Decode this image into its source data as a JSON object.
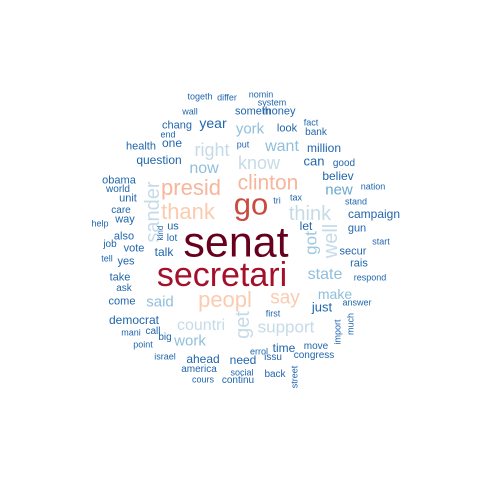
{
  "colors": {
    "darkest": "#67001f",
    "dark_red": "#b2182b",
    "red": "#d6604d",
    "salmon": "#f4a582",
    "peach": "#fddbc7",
    "light_blue": "#d1e5f0",
    "sky": "#92c5de",
    "mid_blue": "#4393c3",
    "blue": "#2166ac",
    "navy": "#053061"
  },
  "words": [
    {
      "text": "senat",
      "color": "#67001f"
    },
    {
      "text": "secretari",
      "color": "#a50f2a"
    },
    {
      "text": "go",
      "color": "#c84b3d"
    },
    {
      "text": "presid",
      "color": "#f7b69b"
    },
    {
      "text": "clinton",
      "color": "#f7b69b"
    },
    {
      "text": "thank",
      "color": "#fbcbb0"
    },
    {
      "text": "peopl",
      "color": "#fbcbb0"
    },
    {
      "text": "say",
      "color": "#fbcbb0"
    },
    {
      "text": "think",
      "color": "#c6dbe8"
    },
    {
      "text": "sander",
      "color": "#c6dbe8"
    },
    {
      "text": "well",
      "color": "#c6dbe8"
    },
    {
      "text": "get",
      "color": "#c6dbe8"
    },
    {
      "text": "got",
      "color": "#9ec8df"
    },
    {
      "text": "know",
      "color": "#c6dbe8"
    },
    {
      "text": "right",
      "color": "#c6dbe8"
    },
    {
      "text": "countri",
      "color": "#c6dbe8"
    },
    {
      "text": "support",
      "color": "#c6dbe8"
    },
    {
      "text": "now",
      "color": "#8fbfdb"
    },
    {
      "text": "want",
      "color": "#8fbfdb"
    },
    {
      "text": "york",
      "color": "#8fbfdb"
    },
    {
      "text": "state",
      "color": "#8fbfdb"
    },
    {
      "text": "said",
      "color": "#8fbfdb"
    },
    {
      "text": "work",
      "color": "#8fbfdb"
    },
    {
      "text": "new",
      "color": "#6aa7cf"
    },
    {
      "text": "make",
      "color": "#8fbfdb"
    },
    {
      "text": "year",
      "color": "#2166ac"
    },
    {
      "text": "can",
      "color": "#2166ac"
    },
    {
      "text": "believ",
      "color": "#2166ac"
    },
    {
      "text": "let",
      "color": "#2166ac"
    },
    {
      "text": "just",
      "color": "#2166ac"
    },
    {
      "text": "talk",
      "color": "#2166ac"
    },
    {
      "text": "ahead",
      "color": "#2166ac"
    },
    {
      "text": "need",
      "color": "#2166ac"
    },
    {
      "text": "time",
      "color": "#2166ac"
    },
    {
      "text": "question",
      "color": "#2166ac"
    },
    {
      "text": "one",
      "color": "#2166ac"
    },
    {
      "text": "money",
      "color": "#2166ac"
    },
    {
      "text": "someth",
      "color": "#2166ac"
    },
    {
      "text": "chang",
      "color": "#2166ac"
    },
    {
      "text": "look",
      "color": "#2166ac"
    },
    {
      "text": "million",
      "color": "#2166ac"
    },
    {
      "text": "health",
      "color": "#2166ac"
    },
    {
      "text": "campaign",
      "color": "#2166ac"
    },
    {
      "text": "gun",
      "color": "#2166ac"
    },
    {
      "text": "secur",
      "color": "#2166ac"
    },
    {
      "text": "democrat",
      "color": "#2166ac"
    },
    {
      "text": "unit",
      "color": "#2166ac"
    },
    {
      "text": "way",
      "color": "#2166ac"
    },
    {
      "text": "also",
      "color": "#2166ac"
    },
    {
      "text": "take",
      "color": "#2166ac"
    },
    {
      "text": "vote",
      "color": "#2166ac"
    },
    {
      "text": "yes",
      "color": "#2166ac"
    },
    {
      "text": "come",
      "color": "#2166ac"
    },
    {
      "text": "ask",
      "color": "#2166ac"
    },
    {
      "text": "obama",
      "color": "#2166ac"
    },
    {
      "text": "world",
      "color": "#2166ac"
    },
    {
      "text": "care",
      "color": "#2166ac"
    },
    {
      "text": "us",
      "color": "#2166ac"
    },
    {
      "text": "lot",
      "color": "#2166ac"
    },
    {
      "text": "rais",
      "color": "#2166ac"
    },
    {
      "text": "move",
      "color": "#2166ac"
    },
    {
      "text": "bank",
      "color": "#2166ac"
    },
    {
      "text": "good",
      "color": "#2166ac"
    },
    {
      "text": "nation",
      "color": "#2166ac"
    },
    {
      "text": "stand",
      "color": "#2166ac"
    },
    {
      "text": "start",
      "color": "#2166ac"
    },
    {
      "text": "respond",
      "color": "#2166ac"
    },
    {
      "text": "answer",
      "color": "#2166ac"
    },
    {
      "text": "much",
      "color": "#2166ac"
    },
    {
      "text": "import",
      "color": "#2166ac"
    },
    {
      "text": "congress",
      "color": "#2166ac"
    },
    {
      "text": "issu",
      "color": "#2166ac"
    },
    {
      "text": "errol",
      "color": "#2166ac"
    },
    {
      "text": "first",
      "color": "#2166ac"
    },
    {
      "text": "social",
      "color": "#2166ac"
    },
    {
      "text": "back",
      "color": "#2166ac"
    },
    {
      "text": "continu",
      "color": "#2166ac"
    },
    {
      "text": "america",
      "color": "#2166ac"
    },
    {
      "text": "cours",
      "color": "#2166ac"
    },
    {
      "text": "street",
      "color": "#2166ac"
    },
    {
      "text": "israel",
      "color": "#2166ac"
    },
    {
      "text": "big",
      "color": "#2166ac"
    },
    {
      "text": "call",
      "color": "#2166ac"
    },
    {
      "text": "mani",
      "color": "#2166ac"
    },
    {
      "text": "point",
      "color": "#2166ac"
    },
    {
      "text": "job",
      "color": "#2166ac"
    },
    {
      "text": "help",
      "color": "#2166ac"
    },
    {
      "text": "tell",
      "color": "#2166ac"
    },
    {
      "text": "kind",
      "color": "#2166ac"
    },
    {
      "text": "tri",
      "color": "#2166ac"
    },
    {
      "text": "tax",
      "color": "#2166ac"
    },
    {
      "text": "put",
      "color": "#2166ac"
    },
    {
      "text": "end",
      "color": "#2166ac"
    },
    {
      "text": "fact",
      "color": "#2166ac"
    },
    {
      "text": "wall",
      "color": "#2166ac"
    },
    {
      "text": "system",
      "color": "#2166ac"
    },
    {
      "text": "nomin",
      "color": "#2166ac"
    },
    {
      "text": "differ",
      "color": "#2166ac"
    },
    {
      "text": "togeth",
      "color": "#2166ac"
    }
  ]
}
